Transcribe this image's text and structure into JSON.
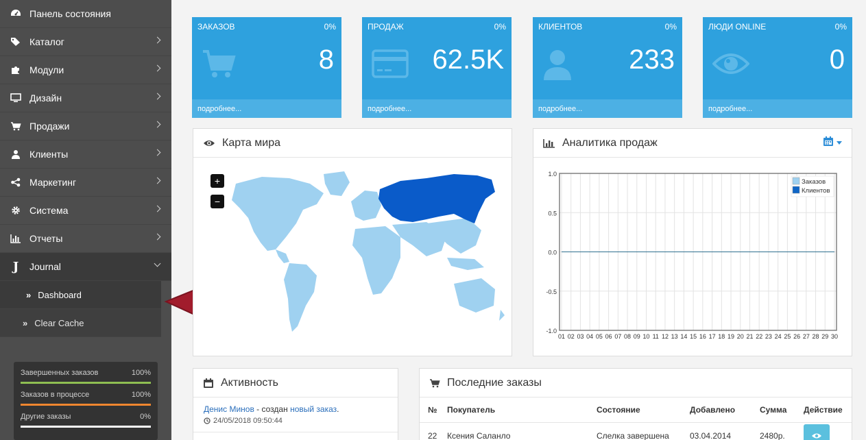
{
  "sidebar": {
    "items": [
      {
        "label": "Панель состояния",
        "icon": "dashboard-icon",
        "chevron": false
      },
      {
        "label": "Каталог",
        "icon": "tags-icon",
        "chevron": true
      },
      {
        "label": "Модули",
        "icon": "puzzle-icon",
        "chevron": true
      },
      {
        "label": "Дизайн",
        "icon": "monitor-icon",
        "chevron": true
      },
      {
        "label": "Продажи",
        "icon": "cart-icon",
        "chevron": true
      },
      {
        "label": "Клиенты",
        "icon": "user-icon",
        "chevron": true
      },
      {
        "label": "Маркетинг",
        "icon": "share-icon",
        "chevron": true
      },
      {
        "label": "Система",
        "icon": "gear-icon",
        "chevron": true
      },
      {
        "label": "Отчеты",
        "icon": "bar-chart-icon",
        "chevron": true
      }
    ],
    "journal": {
      "label": "Journal",
      "icon_letter": "J"
    },
    "sub_items": [
      {
        "label": "Dashboard"
      },
      {
        "label": "Clear Cache"
      }
    ],
    "stats": [
      {
        "label": "Завершенных заказов",
        "value": "100%",
        "fraction": 1.0,
        "color": "#8fbe52"
      },
      {
        "label": "Заказов в процессе",
        "value": "100%",
        "fraction": 1.0,
        "color": "#f0862f"
      },
      {
        "label": "Другие заказы",
        "value": "0%",
        "fraction": 0.0,
        "color": "#ffffff"
      }
    ]
  },
  "tiles": [
    {
      "title": "ЗАКАЗОВ",
      "percent": "0%",
      "value": "8",
      "footer": "подробнее...",
      "icon": "cart-icon"
    },
    {
      "title": "ПРОДАЖ",
      "percent": "0%",
      "value": "62.5K",
      "footer": "подробнее...",
      "icon": "credit-card-icon"
    },
    {
      "title": "КЛИЕНТОВ",
      "percent": "0%",
      "value": "233",
      "footer": "подробнее...",
      "icon": "user-icon"
    },
    {
      "title": "ЛЮДИ ONLINE",
      "percent": "0%",
      "value": "0",
      "footer": "подробнее...",
      "icon": "eye-icon"
    }
  ],
  "map_panel": {
    "title": "Карта мира",
    "zoom_in": "+",
    "zoom_out": "−"
  },
  "analytics_panel": {
    "title": "Аналитика продаж",
    "legend": [
      "Заказов",
      "Клиентов"
    ],
    "colors": {
      "orders": "#9fd1f0",
      "customers": "#1066c6"
    }
  },
  "chart_data": {
    "type": "line",
    "title": "",
    "xlabel": "",
    "ylabel": "",
    "categories": [
      "01",
      "02",
      "03",
      "04",
      "05",
      "06",
      "07",
      "08",
      "09",
      "10",
      "11",
      "12",
      "13",
      "14",
      "15",
      "16",
      "17",
      "18",
      "19",
      "20",
      "21",
      "22",
      "23",
      "24",
      "25",
      "26",
      "27",
      "28",
      "29",
      "30"
    ],
    "series": [
      {
        "name": "Заказов",
        "values": [
          0,
          0,
          0,
          0,
          0,
          0,
          0,
          0,
          0,
          0,
          0,
          0,
          0,
          0,
          0,
          0,
          0,
          0,
          0,
          0,
          0,
          0,
          0,
          0,
          0,
          0,
          0,
          0,
          0,
          0
        ]
      },
      {
        "name": "Клиентов",
        "values": [
          0,
          0,
          0,
          0,
          0,
          0,
          0,
          0,
          0,
          0,
          0,
          0,
          0,
          0,
          0,
          0,
          0,
          0,
          0,
          0,
          0,
          0,
          0,
          0,
          0,
          0,
          0,
          0,
          0,
          0
        ]
      }
    ],
    "ylim": [
      -1.0,
      1.0
    ],
    "yticks": [
      "1.0",
      "0.5",
      "0.0",
      "-0.5",
      "-1.0"
    ],
    "grid": true,
    "legend_position": "top-right"
  },
  "activity_panel": {
    "title": "Активность",
    "items": [
      {
        "name": "Денис Минов",
        "text": " - создан ",
        "link": "новый заказ",
        "end": ".",
        "time": "24/05/2018 09:50:44"
      }
    ]
  },
  "orders_panel": {
    "title": "Последние заказы",
    "headers": [
      "№",
      "Покупатель",
      "Состояние",
      "Добавлено",
      "Сумма",
      "Действие"
    ],
    "rows": [
      {
        "id": "22",
        "customer": "Ксения Саланло",
        "status": "Слелка завершена",
        "date": "03.04.2014",
        "total": "2480р."
      }
    ]
  }
}
